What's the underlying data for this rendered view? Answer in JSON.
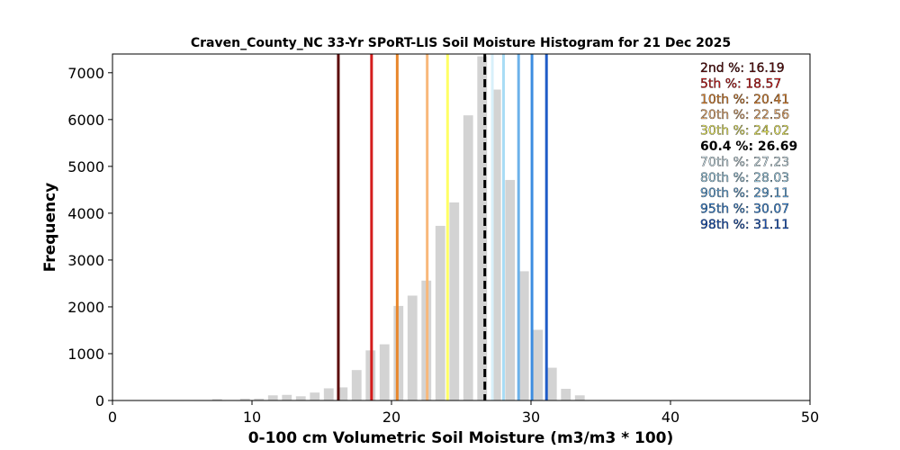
{
  "chart_data": {
    "type": "bar",
    "title": "Craven_County_NC 33-Yr SPoRT-LIS Soil Moisture Histogram for 21 Dec 2025",
    "xlabel": "0-100 cm Volumetric Soil Moisture (m3/m3 * 100)",
    "ylabel": "Frequency",
    "xlim": [
      0,
      50
    ],
    "ylim": [
      0,
      7400
    ],
    "grid": false,
    "xticks": [
      0,
      10,
      20,
      30,
      40,
      50
    ],
    "yticks": [
      0,
      1000,
      2000,
      3000,
      4000,
      5000,
      6000,
      7000
    ],
    "bar_color": "#d3d3d3",
    "bin_width": 1.0,
    "bins": [
      {
        "x": 5.5,
        "value": 10
      },
      {
        "x": 7.5,
        "value": 30
      },
      {
        "x": 8.5,
        "value": 10
      },
      {
        "x": 9.5,
        "value": 40
      },
      {
        "x": 10.5,
        "value": 40
      },
      {
        "x": 11.5,
        "value": 110
      },
      {
        "x": 12.5,
        "value": 120
      },
      {
        "x": 13.5,
        "value": 90
      },
      {
        "x": 14.5,
        "value": 170
      },
      {
        "x": 15.5,
        "value": 260
      },
      {
        "x": 16.5,
        "value": 280
      },
      {
        "x": 17.5,
        "value": 650
      },
      {
        "x": 18.5,
        "value": 1070
      },
      {
        "x": 19.5,
        "value": 1200
      },
      {
        "x": 20.5,
        "value": 2020
      },
      {
        "x": 21.5,
        "value": 2240
      },
      {
        "x": 22.5,
        "value": 2560
      },
      {
        "x": 23.5,
        "value": 3730
      },
      {
        "x": 24.5,
        "value": 4230
      },
      {
        "x": 25.5,
        "value": 6090
      },
      {
        "x": 26.5,
        "value": 7350
      },
      {
        "x": 27.5,
        "value": 6640
      },
      {
        "x": 28.5,
        "value": 4710
      },
      {
        "x": 29.5,
        "value": 2760
      },
      {
        "x": 30.5,
        "value": 1510
      },
      {
        "x": 31.5,
        "value": 700
      },
      {
        "x": 32.5,
        "value": 250
      },
      {
        "x": 33.5,
        "value": 110
      },
      {
        "x": 34.5,
        "value": 10
      }
    ],
    "percentiles": [
      {
        "label": "2nd %: 16.19",
        "value": 16.19,
        "color": "#5c0a0a",
        "dashed": false
      },
      {
        "label": "5th %: 18.57",
        "value": 18.57,
        "color": "#d41c1c",
        "dashed": false
      },
      {
        "label": "10th %: 20.41",
        "value": 20.41,
        "color": "#e8872c",
        "dashed": false
      },
      {
        "label": "20th %: 22.56",
        "value": 22.56,
        "color": "#f8b87a",
        "dashed": false
      },
      {
        "label": "30th %: 24.02",
        "value": 24.02,
        "color": "#ffff66",
        "dashed": false
      },
      {
        "label": "60.4 %: 26.69",
        "value": 26.69,
        "color": "#000000",
        "dashed": true
      },
      {
        "label": "70th %: 27.23",
        "value": 27.23,
        "color": "#d8f0fa",
        "dashed": false
      },
      {
        "label": "80th %: 28.03",
        "value": 28.03,
        "color": "#a8dcf5",
        "dashed": false
      },
      {
        "label": "90th %: 29.11",
        "value": 29.11,
        "color": "#6cb2ea",
        "dashed": false
      },
      {
        "label": "95th %: 30.07",
        "value": 30.07,
        "color": "#3d8de0",
        "dashed": false
      },
      {
        "label": "98th %: 31.11",
        "value": 31.11,
        "color": "#1f5cc8",
        "dashed": false
      }
    ],
    "legend_placement": "top-right"
  }
}
